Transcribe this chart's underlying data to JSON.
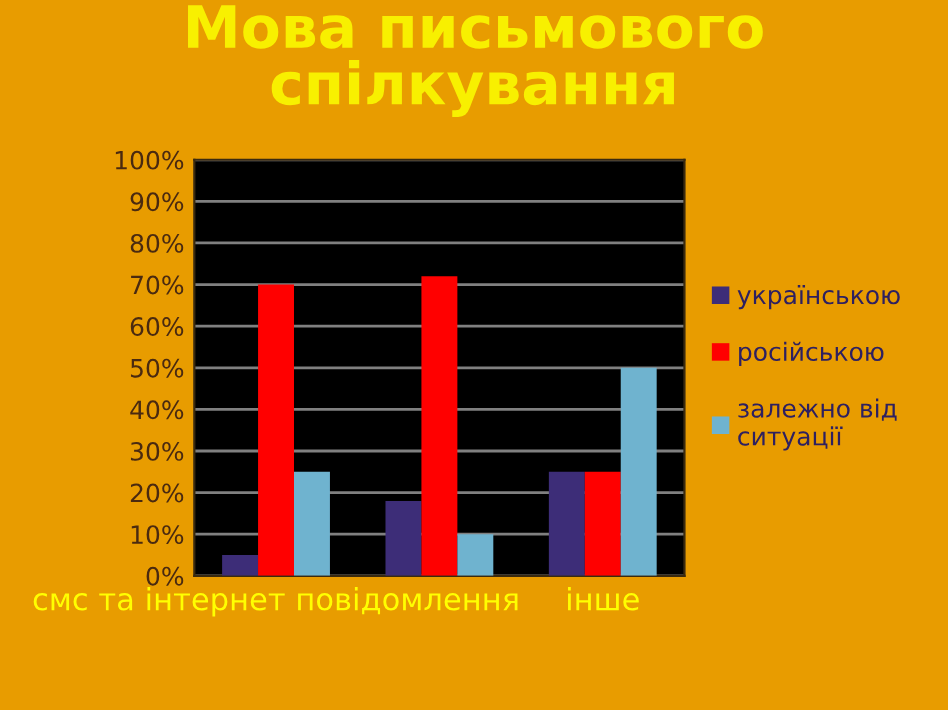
{
  "chart_data": {
    "type": "bar",
    "title": "Мова письмового\nспілкування",
    "categories": [
      "смс та інтернет повідомлення",
      null,
      "інше"
    ],
    "series": [
      {
        "name": "українською",
        "color": "#3d2d78",
        "values": [
          5,
          18,
          25
        ]
      },
      {
        "name": "російською",
        "color": "#ff0000",
        "values": [
          70,
          72,
          25
        ]
      },
      {
        "name": "залежно від\nситуації",
        "color": "#6fb3cf",
        "values": [
          25,
          10,
          50
        ]
      }
    ],
    "ylim": [
      0,
      100
    ],
    "yticks": [
      {
        "value": 0,
        "label": "0%"
      },
      {
        "value": 10,
        "label": "10%"
      },
      {
        "value": 20,
        "label": "20%"
      },
      {
        "value": 30,
        "label": "30%"
      },
      {
        "value": 40,
        "label": "40%"
      },
      {
        "value": 50,
        "label": "50%"
      },
      {
        "value": 60,
        "label": "60%"
      },
      {
        "value": 70,
        "label": "70%"
      },
      {
        "value": 80,
        "label": "80%"
      },
      {
        "value": 90,
        "label": "90%"
      },
      {
        "value": 100,
        "label": "100%"
      }
    ],
    "grid": "y",
    "legend": "right"
  }
}
